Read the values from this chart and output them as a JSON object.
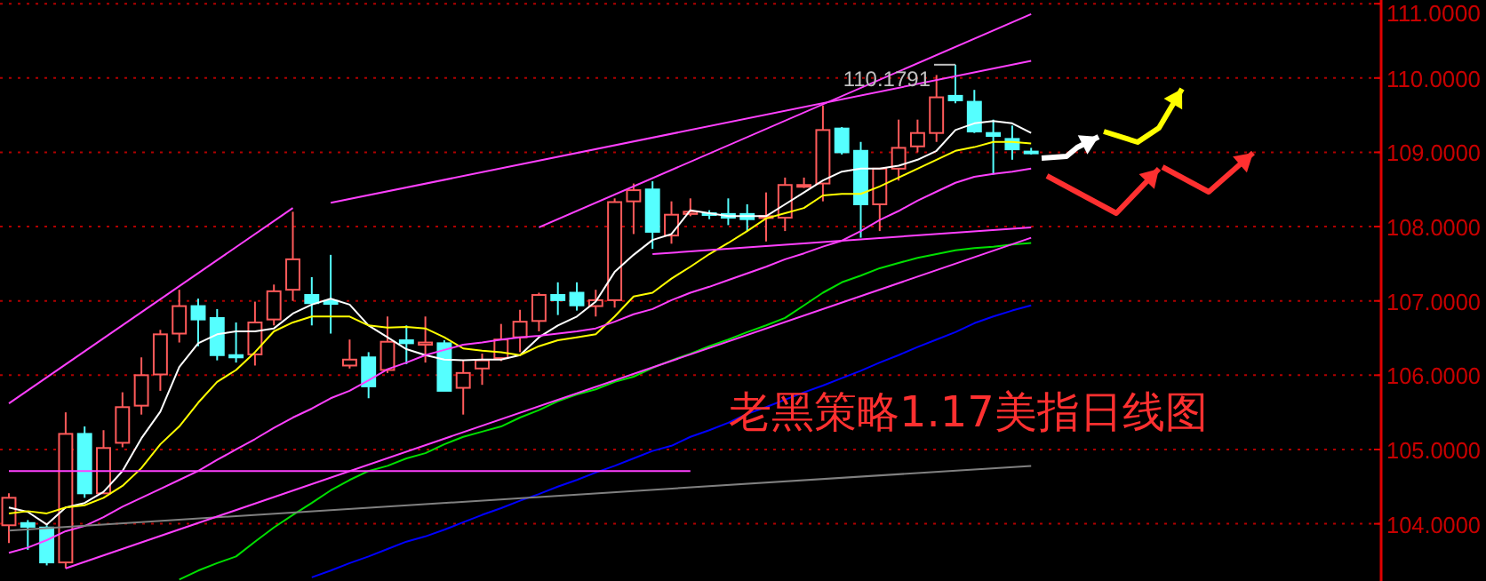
{
  "chart_data": {
    "type": "candlestick",
    "categories": [
      null,
      null,
      null,
      null,
      null,
      null,
      null,
      null,
      null,
      null,
      null,
      null,
      null,
      null,
      null,
      null,
      null,
      null,
      null,
      null,
      null,
      null,
      null,
      null,
      null,
      null,
      null,
      null,
      null,
      null,
      null,
      null,
      null,
      null,
      null,
      null,
      null,
      null,
      null,
      null,
      null,
      null,
      null,
      null,
      null,
      null,
      null,
      null,
      null,
      null,
      null,
      null,
      null,
      null,
      null
    ],
    "ohlc": [
      [
        103.98,
        104.41,
        103.74,
        104.35
      ],
      [
        104.01,
        104.05,
        103.65,
        103.96
      ],
      [
        103.95,
        103.98,
        103.44,
        103.48
      ],
      [
        103.48,
        105.5,
        103.4,
        105.21
      ],
      [
        105.21,
        105.31,
        104.35,
        104.41
      ],
      [
        104.41,
        105.26,
        104.41,
        105.02
      ],
      [
        105.09,
        105.77,
        105.03,
        105.57
      ],
      [
        105.59,
        106.24,
        105.47,
        106.0
      ],
      [
        106.01,
        106.61,
        105.79,
        106.55
      ],
      [
        106.56,
        107.15,
        106.44,
        106.93
      ],
      [
        106.93,
        107.03,
        106.39,
        106.75
      ],
      [
        106.77,
        106.89,
        106.2,
        106.27
      ],
      [
        106.27,
        106.71,
        106.17,
        106.24
      ],
      [
        106.28,
        106.99,
        106.13,
        106.71
      ],
      [
        106.75,
        107.22,
        106.67,
        107.13
      ],
      [
        107.15,
        108.2,
        107.0,
        107.56
      ],
      [
        107.08,
        107.32,
        106.67,
        106.97
      ],
      [
        107.0,
        107.62,
        106.56,
        106.96
      ],
      [
        106.13,
        106.48,
        106.09,
        106.21
      ],
      [
        106.24,
        106.31,
        105.69,
        105.85
      ],
      [
        106.07,
        106.79,
        106.03,
        106.45
      ],
      [
        106.47,
        106.67,
        106.15,
        106.43
      ],
      [
        106.41,
        106.79,
        106.17,
        106.44
      ],
      [
        106.43,
        106.47,
        105.79,
        105.79
      ],
      [
        105.83,
        106.2,
        105.47,
        106.03
      ],
      [
        106.09,
        106.29,
        105.87,
        106.2
      ],
      [
        106.23,
        106.69,
        106.19,
        106.48
      ],
      [
        106.51,
        106.88,
        106.31,
        106.72
      ],
      [
        106.73,
        107.11,
        106.59,
        107.08
      ],
      [
        107.08,
        107.25,
        106.81,
        107.01
      ],
      [
        107.11,
        107.25,
        106.87,
        106.94
      ],
      [
        106.93,
        107.15,
        106.79,
        107.01
      ],
      [
        107.01,
        108.38,
        106.91,
        108.33
      ],
      [
        108.34,
        108.58,
        107.9,
        108.49
      ],
      [
        108.5,
        108.61,
        107.7,
        107.93
      ],
      [
        107.88,
        108.34,
        107.77,
        108.16
      ],
      [
        108.17,
        108.38,
        108.14,
        108.2
      ],
      [
        108.18,
        108.22,
        108.1,
        108.16
      ],
      [
        108.17,
        108.38,
        108.02,
        108.12
      ],
      [
        108.17,
        108.3,
        107.94,
        108.1
      ],
      [
        108.12,
        108.46,
        107.8,
        108.14
      ],
      [
        108.12,
        108.66,
        107.94,
        108.56
      ],
      [
        108.54,
        108.66,
        108.52,
        108.56
      ],
      [
        108.58,
        109.63,
        108.34,
        109.3
      ],
      [
        109.32,
        109.34,
        108.97,
        109.0
      ],
      [
        109.02,
        109.14,
        107.85,
        108.3
      ],
      [
        108.3,
        108.78,
        107.94,
        108.78
      ],
      [
        108.78,
        109.44,
        108.62,
        109.06
      ],
      [
        109.08,
        109.44,
        109.0,
        109.26
      ],
      [
        109.26,
        110.04,
        109.14,
        109.74
      ],
      [
        109.76,
        110.1791,
        109.66,
        109.7
      ],
      [
        109.68,
        109.84,
        109.26,
        109.28
      ],
      [
        109.26,
        109.44,
        108.7,
        109.22
      ],
      [
        109.18,
        109.36,
        108.9,
        109.04
      ],
      [
        109.01,
        109.06,
        108.97,
        109.0
      ]
    ],
    "colors": [
      "#ff5a5a",
      "#55ffff",
      "#55ffff",
      "#ff5a5a",
      "#55ffff",
      "#ff5a5a",
      "#ff5a5a",
      "#ff5a5a",
      "#ff5a5a",
      "#ff5a5a",
      "#55ffff",
      "#55ffff",
      "#55ffff",
      "#ff5a5a",
      "#ff5a5a",
      "#ff5a5a",
      "#55ffff",
      "#55ffff",
      "#ff5a5a",
      "#55ffff",
      "#ff5a5a",
      "#55ffff",
      "#ff5a5a",
      "#55ffff",
      "#ff5a5a",
      "#ff5a5a",
      "#ff5a5a",
      "#ff5a5a",
      "#ff5a5a",
      "#55ffff",
      "#55ffff",
      "#ff5a5a",
      "#ff5a5a",
      "#ff5a5a",
      "#55ffff",
      "#ff5a5a",
      "#ff5a5a",
      "#55ffff",
      "#55ffff",
      "#55ffff",
      "#ff5a5a",
      "#ff5a5a",
      "#ff5a5a",
      "#ff5a5a",
      "#55ffff",
      "#55ffff",
      "#ff5a5a",
      "#ff5a5a",
      "#ff5a5a",
      "#ff5a5a",
      "#55ffff",
      "#55ffff",
      "#55ffff",
      "#55ffff",
      "#55ffff"
    ],
    "series": [
      {
        "type": "line",
        "color": "#ffffff",
        "values": [
          104.22,
          104.16,
          103.99,
          104.22,
          104.28,
          104.43,
          104.71,
          105.15,
          105.51,
          106.11,
          106.43,
          106.55,
          106.59,
          106.59,
          106.63,
          106.83,
          106.95,
          107.03,
          106.95,
          106.67,
          106.51,
          106.35,
          106.27,
          106.21,
          106.2,
          106.21,
          106.21,
          106.27,
          106.51,
          106.67,
          106.79,
          106.99,
          107.39,
          107.62,
          107.82,
          107.9,
          108.22,
          108.18,
          108.14,
          108.14,
          108.14,
          108.3,
          108.46,
          108.62,
          108.74,
          108.78,
          108.78,
          108.82,
          108.9,
          109.02,
          109.3,
          109.39,
          109.42,
          109.39,
          109.26
        ]
      },
      {
        "type": "line",
        "color": "#ffff00",
        "values": [
          104.14,
          104.17,
          104.14,
          104.22,
          104.25,
          104.35,
          104.51,
          104.75,
          105.07,
          105.31,
          105.63,
          105.91,
          106.07,
          106.31,
          106.59,
          106.71,
          106.79,
          106.79,
          106.79,
          106.67,
          106.64,
          106.65,
          106.63,
          106.51,
          106.36,
          106.33,
          106.31,
          106.27,
          106.39,
          106.47,
          106.51,
          106.55,
          106.79,
          107.06,
          107.11,
          107.3,
          107.46,
          107.63,
          107.78,
          107.94,
          108.11,
          108.18,
          108.25,
          108.42,
          108.44,
          108.44,
          108.54,
          108.66,
          108.78,
          108.9,
          109.02,
          109.07,
          109.14,
          109.14,
          109.12
        ]
      },
      {
        "type": "line",
        "color": "#ff40ff",
        "values": [
          103.61,
          103.68,
          103.78,
          103.9,
          103.97,
          104.09,
          104.23,
          104.35,
          104.47,
          104.59,
          104.71,
          104.86,
          105.0,
          105.14,
          105.29,
          105.43,
          105.55,
          105.69,
          105.79,
          105.93,
          106.08,
          106.17,
          106.27,
          106.34,
          106.41,
          106.44,
          106.48,
          106.51,
          106.53,
          106.56,
          106.59,
          106.63,
          106.72,
          106.82,
          106.89,
          107.01,
          107.11,
          107.19,
          107.28,
          107.37,
          107.46,
          107.56,
          107.64,
          107.73,
          107.81,
          107.94,
          108.09,
          108.21,
          108.35,
          108.47,
          108.59,
          108.67,
          108.71,
          108.74,
          108.78
        ]
      },
      {
        "type": "line",
        "color": "#00e000",
        "values": [
          null,
          null,
          null,
          null,
          null,
          null,
          null,
          null,
          null,
          103.25,
          103.37,
          103.47,
          103.56,
          103.76,
          103.95,
          104.12,
          104.28,
          104.45,
          104.59,
          104.71,
          104.78,
          104.88,
          104.95,
          105.07,
          105.17,
          105.24,
          105.31,
          105.43,
          105.53,
          105.65,
          105.74,
          105.81,
          105.91,
          105.98,
          106.1,
          106.2,
          106.29,
          106.39,
          106.48,
          106.58,
          106.67,
          106.77,
          106.94,
          107.11,
          107.25,
          107.34,
          107.44,
          107.51,
          107.58,
          107.63,
          107.68,
          107.71,
          107.73,
          107.76,
          107.78
        ]
      },
      {
        "type": "line",
        "color": "#0000ff",
        "values": [
          null,
          null,
          null,
          null,
          null,
          null,
          null,
          null,
          null,
          null,
          null,
          null,
          null,
          null,
          null,
          null,
          103.28,
          103.37,
          103.47,
          103.56,
          103.66,
          103.76,
          103.83,
          103.92,
          104.02,
          104.12,
          104.21,
          104.31,
          104.4,
          104.5,
          104.59,
          104.69,
          104.78,
          104.88,
          104.98,
          105.05,
          105.17,
          105.26,
          105.36,
          105.48,
          105.57,
          105.67,
          105.77,
          105.86,
          105.96,
          106.06,
          106.17,
          106.27,
          106.38,
          106.48,
          106.58,
          106.7,
          106.79,
          106.87,
          106.94
        ]
      },
      {
        "type": "line",
        "color": "#808080",
        "values": [
          103.91,
          null,
          null,
          null,
          null,
          null,
          null,
          null,
          null,
          null,
          null,
          null,
          null,
          null,
          null,
          null,
          null,
          null,
          null,
          null,
          null,
          null,
          null,
          null,
          null,
          null,
          null,
          null,
          null,
          null,
          null,
          null,
          null,
          null,
          null,
          null,
          null,
          null,
          null,
          null,
          null,
          null,
          null,
          null,
          null,
          null,
          null,
          null,
          null,
          null,
          null,
          null,
          null,
          null,
          104.78
        ]
      },
      {
        "type": "line",
        "color": "#ff40ff",
        "values": [
          105.62,
          null,
          null,
          null,
          null,
          null,
          null,
          null,
          null,
          null,
          null,
          null,
          null,
          null,
          null,
          108.25,
          null,
          null,
          null,
          null,
          null,
          null,
          null,
          null,
          null,
          null,
          null,
          null,
          null,
          null,
          null,
          null,
          null,
          null,
          null,
          null,
          null,
          null,
          null,
          null,
          null,
          null,
          null,
          null,
          null,
          null,
          null,
          null,
          null,
          null,
          null,
          null,
          null,
          null,
          null
        ]
      },
      {
        "type": "line",
        "color": "#ff40ff",
        "values": [
          null,
          null,
          null,
          null,
          null,
          null,
          null,
          null,
          null,
          null,
          null,
          null,
          null,
          null,
          null,
          null,
          null,
          108.32,
          null,
          null,
          null,
          null,
          null,
          null,
          null,
          null,
          null,
          null,
          null,
          null,
          null,
          null,
          null,
          null,
          null,
          null,
          null,
          null,
          null,
          null,
          null,
          null,
          null,
          null,
          null,
          null,
          null,
          null,
          null,
          null,
          null,
          null,
          null,
          null,
          110.23
        ]
      },
      {
        "type": "line",
        "color": "#ff40ff",
        "values": [
          null,
          null,
          null,
          null,
          null,
          null,
          null,
          null,
          null,
          null,
          null,
          null,
          null,
          null,
          null,
          null,
          null,
          null,
          null,
          null,
          null,
          null,
          null,
          null,
          null,
          null,
          null,
          null,
          107.99,
          null,
          null,
          null,
          null,
          null,
          null,
          null,
          null,
          null,
          null,
          null,
          null,
          null,
          null,
          null,
          null,
          null,
          null,
          null,
          null,
          null,
          null,
          null,
          null,
          null,
          110.86
        ]
      },
      {
        "type": "line",
        "color": "#ff40ff",
        "values": [
          null,
          null,
          null,
          103.4,
          null,
          null,
          null,
          null,
          null,
          null,
          null,
          null,
          null,
          null,
          null,
          null,
          null,
          null,
          null,
          null,
          null,
          null,
          null,
          null,
          null,
          null,
          null,
          null,
          null,
          null,
          null,
          null,
          null,
          null,
          null,
          null,
          null,
          null,
          null,
          null,
          null,
          null,
          null,
          null,
          null,
          null,
          null,
          null,
          null,
          null,
          null,
          null,
          null,
          null,
          107.85
        ]
      },
      {
        "type": "line",
        "color": "#ff40ff",
        "values": [
          104.71,
          null,
          null,
          null,
          null,
          null,
          null,
          null,
          null,
          null,
          null,
          null,
          null,
          null,
          null,
          null,
          null,
          null,
          null,
          null,
          null,
          null,
          null,
          null,
          null,
          null,
          null,
          null,
          null,
          null,
          null,
          null,
          null,
          null,
          null,
          null,
          104.71,
          null,
          null,
          null,
          null,
          null,
          null,
          null,
          null,
          null,
          null,
          null,
          null,
          null,
          null,
          null,
          null,
          null,
          null
        ]
      },
      {
        "type": "line",
        "color": "#ff40ff",
        "values": [
          null,
          null,
          null,
          null,
          null,
          null,
          null,
          null,
          null,
          null,
          null,
          null,
          null,
          null,
          null,
          null,
          null,
          null,
          null,
          null,
          null,
          null,
          null,
          null,
          null,
          null,
          null,
          null,
          null,
          null,
          null,
          null,
          null,
          null,
          107.63,
          null,
          null,
          null,
          null,
          null,
          null,
          null,
          null,
          null,
          null,
          null,
          null,
          null,
          null,
          null,
          null,
          null,
          null,
          null,
          107.99
        ]
      }
    ],
    "ylim": [
      103.23,
      111.05
    ],
    "yticks": [
      {
        "value": 104,
        "label": "104.0000"
      },
      {
        "value": 105,
        "label": "105.0000"
      },
      {
        "value": 106,
        "label": "106.0000"
      },
      {
        "value": 107,
        "label": "107.0000"
      },
      {
        "value": 108,
        "label": "108.0000"
      },
      {
        "value": 109,
        "label": "109.0000"
      },
      {
        "value": 110,
        "label": "110.0000"
      },
      {
        "value": 111,
        "label": "111.0000"
      }
    ],
    "grid": "y",
    "annotations": [
      "110.1791",
      "老黑策略1.17美指日线图"
    ]
  }
}
